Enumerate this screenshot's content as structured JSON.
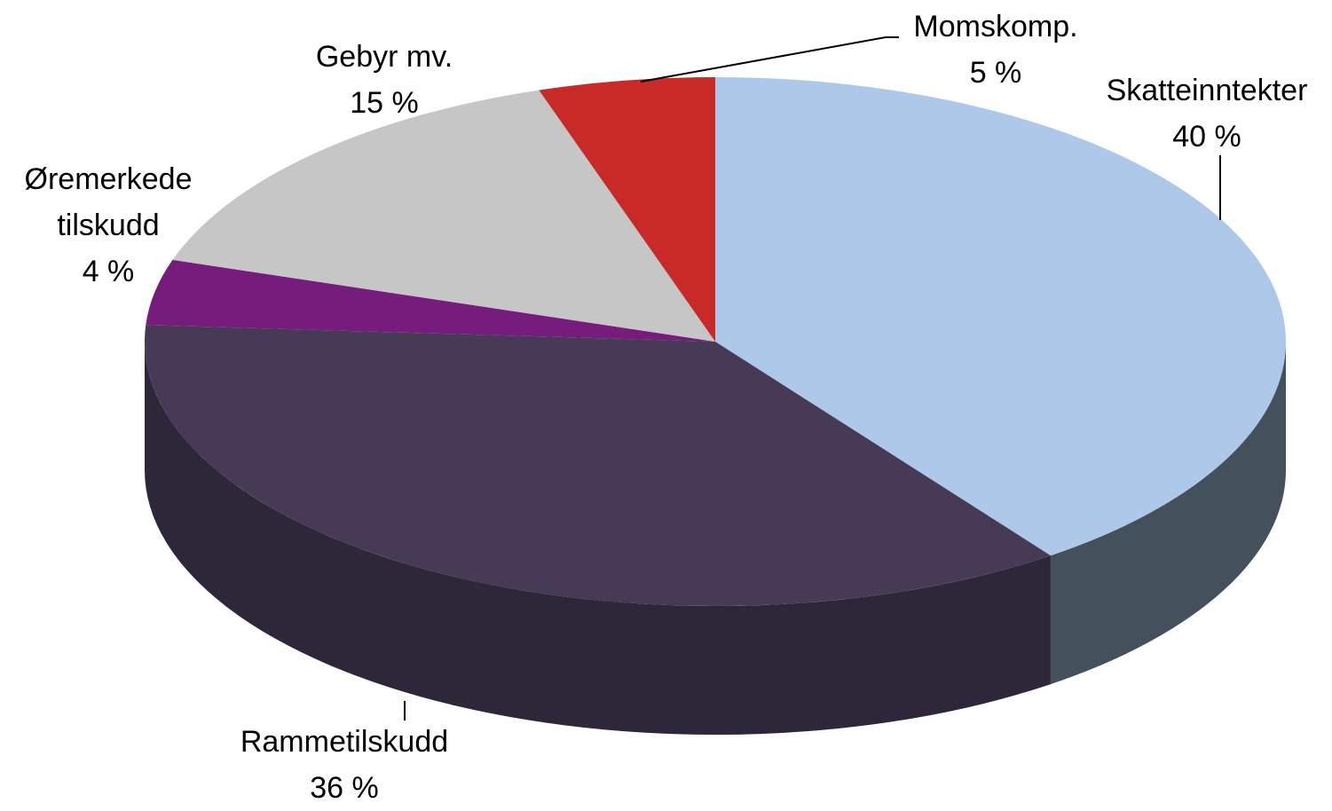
{
  "chart_data": {
    "type": "pie",
    "categories": [
      "Skatteinntekter",
      "Rammetilskudd",
      "Øremerkede tilskudd",
      "Gebyr mv.",
      "Momskomp."
    ],
    "values": [
      40,
      36,
      4,
      15,
      5
    ],
    "value_labels": [
      "40 %",
      "36 %",
      "4 %",
      "15 %",
      "5 %"
    ],
    "colors": [
      "#adc8e8",
      "#473a57",
      "#751c7c",
      "#c5c6c5",
      "#c82a28"
    ]
  }
}
